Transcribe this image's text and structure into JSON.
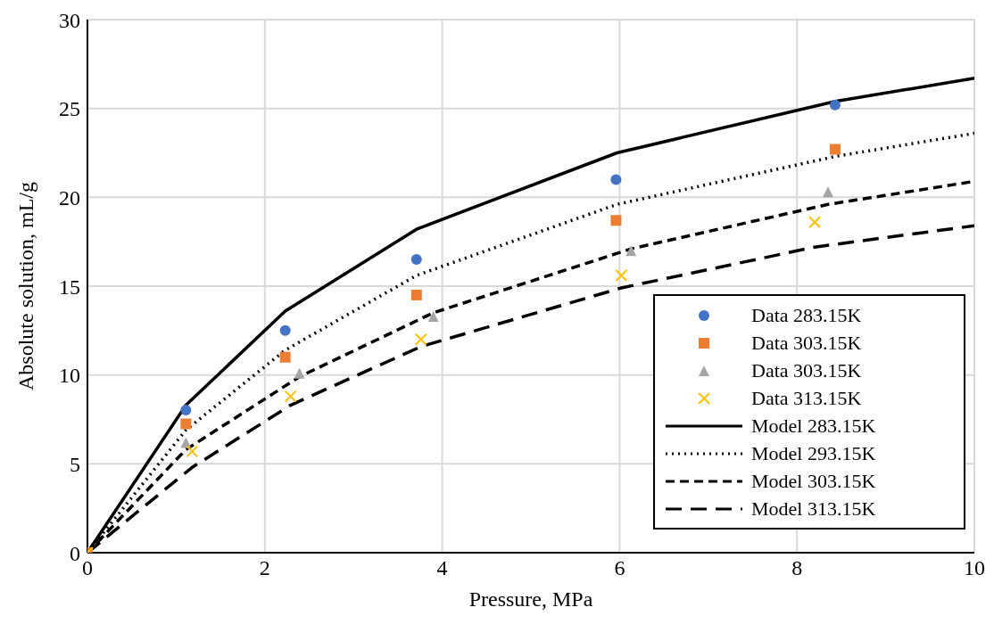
{
  "chart_data": {
    "type": "scatter",
    "xlabel": "Pressure, MPa",
    "ylabel": "Absolute solution, mL/g",
    "xlim": [
      0,
      10
    ],
    "xticks": [
      0,
      2,
      4,
      6,
      8,
      10
    ],
    "ylim": [
      0,
      30
    ],
    "yticks": [
      0,
      5,
      10,
      15,
      20,
      25,
      30
    ],
    "grid": true,
    "legend": "bottom right",
    "series": [
      {
        "name": "Data 283.15K",
        "marker": "circle",
        "color": "#4472c4",
        "x": [
          1.11,
          2.23,
          3.71,
          5.96,
          8.43
        ],
        "values": [
          8.03,
          12.5,
          16.5,
          21.0,
          25.2
        ]
      },
      {
        "name": "Data 303.15K",
        "marker": "square",
        "color": "#ed7d31",
        "x": [
          0,
          1.11,
          2.23,
          3.71,
          5.96,
          8.43
        ],
        "values": [
          0,
          7.25,
          11.0,
          14.5,
          18.7,
          22.7
        ]
      },
      {
        "name": "Data 303.15K",
        "marker": "triangle",
        "color": "#a5a5a5",
        "x": [
          1.11,
          2.39,
          3.9,
          6.13,
          8.35
        ],
        "values": [
          6.2,
          10.1,
          13.3,
          17.0,
          20.3
        ]
      },
      {
        "name": "Data 313.15K",
        "marker": "cross",
        "color": "#ffc000",
        "x": [
          0,
          1.18,
          2.29,
          3.76,
          6.02,
          8.2
        ],
        "values": [
          0,
          5.7,
          8.8,
          12.0,
          15.6,
          18.6
        ]
      },
      {
        "name": "Model 283.15K",
        "type": "line",
        "line_style": "solid",
        "color": "#000000",
        "x": [
          0,
          1.11,
          2.23,
          3.71,
          5.97,
          8.43,
          10
        ],
        "values": [
          0,
          8.3,
          13.6,
          18.2,
          22.5,
          25.4,
          26.7
        ]
      },
      {
        "name": "Model 293.15K",
        "type": "line",
        "line_style": "dotted",
        "color": "#000000",
        "x": [
          0,
          1.11,
          2.23,
          3.71,
          5.97,
          8.43,
          10
        ],
        "values": [
          0,
          6.9,
          11.4,
          15.6,
          19.6,
          22.3,
          23.6
        ]
      },
      {
        "name": "Model 303.15K",
        "type": "line",
        "line_style": "dashed",
        "color": "#000000",
        "x": [
          0,
          1.11,
          2.39,
          3.9,
          6.13,
          8.35,
          10
        ],
        "values": [
          0,
          5.8,
          9.9,
          13.5,
          17.1,
          19.6,
          20.9
        ]
      },
      {
        "name": "Model 313.15K",
        "type": "line",
        "line_style": "dashed",
        "color": "#000000",
        "x": [
          0,
          1.18,
          2.29,
          3.76,
          6.02,
          8.2,
          10
        ],
        "values": [
          0,
          4.8,
          8.3,
          11.6,
          14.9,
          17.2,
          18.4
        ]
      }
    ]
  }
}
